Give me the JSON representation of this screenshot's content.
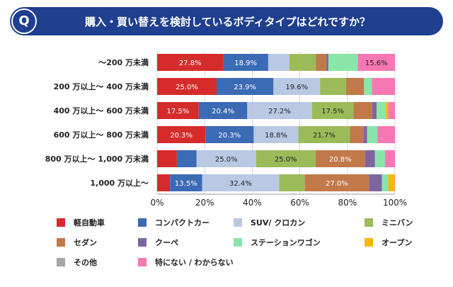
{
  "header": {
    "q_badge": "Q",
    "question": "購入・買い替えを検討しているボディタイプはどれですか？"
  },
  "colors": {
    "header_bg": "#1f3f8f",
    "segments": [
      "#d62b2b",
      "#3c6bb5",
      "#b9c9e4",
      "#9bbb59",
      "#c1794a",
      "#8064a2",
      "#8ae6a8",
      "#f9b800",
      "#a6a6a6",
      "#f777b4"
    ]
  },
  "chart_data": {
    "type": "bar",
    "orientation": "horizontal-stacked-100",
    "categories": [
      "〜200 万未満",
      "200 万以上〜 400 万未満",
      "400 万以上〜 600 万未満",
      "600 万以上〜 800 万未満",
      "800 万以上〜 1,000 万未満",
      "1,000 万以上〜"
    ],
    "series": [
      {
        "name": "軽自動車",
        "values": [
          27.8,
          25.0,
          17.5,
          20.3,
          8.3,
          5.4
        ],
        "labels": [
          "27.8%",
          "25.0%",
          "17.5%",
          "20.3%",
          "",
          ""
        ]
      },
      {
        "name": "コンパクトカー",
        "values": [
          18.9,
          23.9,
          20.4,
          20.3,
          8.3,
          13.5
        ],
        "labels": [
          "18.9%",
          "23.9%",
          "20.4%",
          "20.3%",
          "",
          "13.5%"
        ]
      },
      {
        "name": "SUV/ クロカン",
        "values": [
          8.9,
          19.6,
          27.2,
          18.8,
          25.0,
          32.4
        ],
        "labels": [
          "",
          "19.6%",
          "27.2%",
          "18.8%",
          "25.0%",
          "32.4%"
        ]
      },
      {
        "name": "ミニバン",
        "values": [
          11.1,
          10.9,
          17.5,
          21.7,
          25.0,
          10.8
        ],
        "labels": [
          "",
          "",
          "17.5%",
          "21.7%",
          "25.0%",
          ""
        ]
      },
      {
        "name": "セダン",
        "values": [
          4.4,
          7.6,
          7.8,
          5.8,
          20.8,
          27.0
        ],
        "labels": [
          "",
          "",
          "",
          "",
          "20.8%",
          "27.0%"
        ]
      },
      {
        "name": "クーペ",
        "values": [
          0.9,
          0.0,
          1.9,
          1.4,
          4.2,
          5.4
        ],
        "labels": [
          "",
          "",
          "",
          "",
          "",
          ""
        ]
      },
      {
        "name": "ステーションワゴン",
        "values": [
          12.4,
          3.3,
          3.9,
          4.3,
          4.2,
          2.7
        ],
        "labels": [
          "",
          "",
          "",
          "",
          "",
          ""
        ]
      },
      {
        "name": "オープン",
        "values": [
          0.0,
          0.0,
          1.0,
          0.0,
          0.0,
          2.7
        ],
        "labels": [
          "",
          "",
          "",
          "",
          "",
          ""
        ]
      },
      {
        "name": "その他",
        "values": [
          0.0,
          0.0,
          0.0,
          0.0,
          0.0,
          0.0
        ],
        "labels": [
          "",
          "",
          "",
          "",
          "",
          ""
        ]
      },
      {
        "name": "特にない / わからない",
        "values": [
          15.6,
          9.7,
          2.8,
          7.4,
          4.2,
          0.1
        ],
        "labels": [
          "15.6%",
          "",
          "",
          "",
          "",
          ""
        ]
      }
    ],
    "xlim": [
      0,
      100
    ],
    "x_ticks": [
      "0%",
      "20%",
      "40%",
      "60%",
      "80%",
      "100%"
    ],
    "grid": "vertical",
    "legend_position": "bottom"
  }
}
